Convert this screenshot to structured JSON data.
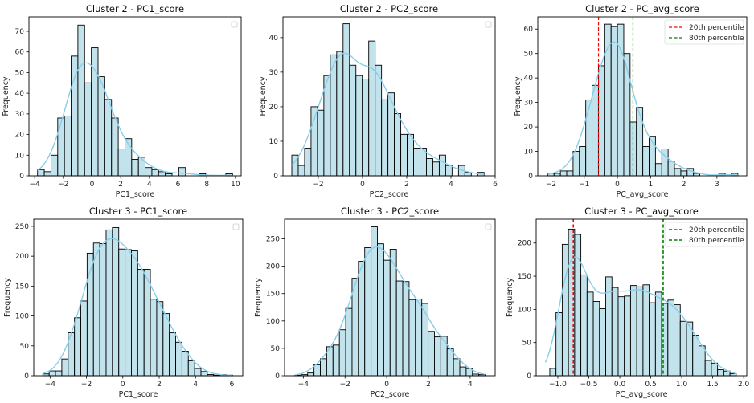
{
  "figure": {
    "bar_fill": "#add8e6",
    "bar_fill_opacity": 0.75,
    "bar_edge": "#000000",
    "kde_color": "#87ceeb",
    "p20_color": "#ff0000",
    "p80_color": "#008000"
  },
  "chart_data": [
    {
      "type": "bar",
      "subtype": "histogram",
      "title": "Cluster 2 - PC1_score",
      "xlabel": "PC1_score",
      "ylabel": "Frequency",
      "xlim": [
        -4.4,
        10.4
      ],
      "ylim": [
        0,
        77
      ],
      "xticks": [
        -4,
        -2,
        0,
        2,
        4,
        6,
        8,
        10
      ],
      "xtick_labels": [
        "−4",
        "−2",
        "0",
        "2",
        "4",
        "6",
        "8",
        "10"
      ],
      "yticks": [
        0,
        10,
        20,
        30,
        40,
        50,
        60,
        70
      ],
      "bin_start": -3.8,
      "bin_width": 0.469,
      "counts": [
        3,
        2,
        10,
        28,
        29,
        58,
        73,
        45,
        62,
        48,
        37,
        28,
        13,
        18,
        8,
        9,
        4,
        3,
        2,
        1,
        0,
        4,
        0,
        0,
        1,
        0,
        0,
        0,
        1
      ],
      "kde": true,
      "empty_legend": true,
      "legend": "top-right"
    },
    {
      "type": "bar",
      "subtype": "histogram",
      "title": "Cluster 2 - PC2_score",
      "xlabel": "PC2_score",
      "ylabel": "Frequency",
      "xlim": [
        -3.6,
        6.0
      ],
      "ylim": [
        0,
        46
      ],
      "xticks": [
        -2,
        0,
        2,
        4,
        6
      ],
      "xtick_labels": [
        "−2",
        "0",
        "2",
        "4",
        "6"
      ],
      "yticks": [
        0,
        10,
        20,
        30,
        40
      ],
      "bin_start": -3.2,
      "bin_width": 0.29,
      "counts": [
        6,
        3,
        8,
        20,
        19,
        29,
        35,
        36,
        44,
        32,
        29,
        28,
        39,
        32,
        22,
        24,
        18,
        12,
        12,
        8,
        8,
        5,
        4,
        6,
        3,
        0,
        3,
        1,
        0,
        1
      ],
      "kde": true,
      "empty_legend": true,
      "legend": "top-right"
    },
    {
      "type": "bar",
      "subtype": "histogram",
      "title": "Cluster 2 - PC_avg_score",
      "xlabel": "PC_avg_score",
      "ylabel": "Frequency",
      "xlim": [
        -2.4,
        3.9
      ],
      "ylim": [
        0,
        65
      ],
      "xticks": [
        -2,
        -1,
        0,
        1,
        2,
        3
      ],
      "xtick_labels": [
        "−2",
        "−1",
        "0",
        "1",
        "2",
        "3"
      ],
      "yticks": [
        0,
        10,
        20,
        30,
        40,
        50,
        60
      ],
      "bin_start": -2.1,
      "bin_width": 0.191,
      "counts": [
        1,
        1,
        2,
        2,
        10,
        12,
        31,
        37,
        45,
        62,
        61,
        62,
        50,
        22,
        28,
        12,
        16,
        5,
        11,
        6,
        3,
        2,
        3,
        1,
        0,
        0,
        0,
        1,
        0,
        1
      ],
      "kde": true,
      "percentile_lines": [
        {
          "label": "20th percentile",
          "value": -0.57,
          "color_key": "p20_color"
        },
        {
          "label": "80th percentile",
          "value": 0.47,
          "color_key": "p80_color"
        }
      ],
      "legend": "top-right"
    },
    {
      "type": "bar",
      "subtype": "histogram",
      "title": "Cluster 3 - PC1_score",
      "xlabel": "PC1_score",
      "ylabel": "Frequency",
      "xlim": [
        -4.9,
        6.6
      ],
      "ylim": [
        0,
        262
      ],
      "xticks": [
        -4,
        -2,
        0,
        2,
        4,
        6
      ],
      "xtick_labels": [
        "−4",
        "−2",
        "0",
        "2",
        "4",
        "6"
      ],
      "yticks": [
        0,
        50,
        100,
        150,
        200,
        250
      ],
      "bin_start": -4.4,
      "bin_width": 0.348,
      "counts": [
        3,
        8,
        8,
        28,
        72,
        97,
        125,
        205,
        222,
        221,
        244,
        248,
        212,
        211,
        209,
        178,
        178,
        128,
        124,
        104,
        72,
        56,
        41,
        25,
        12,
        7,
        2,
        1,
        2,
        1
      ],
      "kde": true,
      "empty_legend": true,
      "legend": "top-right"
    },
    {
      "type": "bar",
      "subtype": "histogram",
      "title": "Cluster 3 - PC2_score",
      "xlabel": "PC2_score",
      "ylabel": "Frequency",
      "xlim": [
        -4.9,
        5.2
      ],
      "ylim": [
        0,
        286
      ],
      "xticks": [
        -4,
        -2,
        0,
        2,
        4
      ],
      "xtick_labels": [
        "−4",
        "−2",
        "0",
        "2",
        "4"
      ],
      "yticks": [
        0,
        50,
        100,
        150,
        200,
        250
      ],
      "bin_start": -4.4,
      "bin_width": 0.304,
      "counts": [
        1,
        2,
        5,
        20,
        31,
        53,
        56,
        84,
        123,
        178,
        209,
        234,
        272,
        241,
        211,
        231,
        173,
        172,
        139,
        140,
        132,
        81,
        71,
        72,
        49,
        31,
        16,
        13,
        3,
        2
      ],
      "kde": true,
      "empty_legend": true,
      "legend": "top-right"
    },
    {
      "type": "bar",
      "subtype": "histogram",
      "title": "Cluster 3 - PC_avg_score",
      "xlabel": "PC_avg_score",
      "ylabel": "Frequency",
      "xlim": [
        -1.35,
        2.05
      ],
      "ylim": [
        0,
        236
      ],
      "xticks": [
        -1.0,
        -0.5,
        0.0,
        0.5,
        1.0,
        1.5,
        2.0
      ],
      "xtick_labels": [
        "−1.0",
        "−0.5",
        "0.0",
        "0.5",
        "1.0",
        "1.5",
        "2.0"
      ],
      "yticks": [
        0,
        50,
        100,
        150,
        200
      ],
      "bin_start": -1.13,
      "bin_width": 0.1003,
      "counts": [
        11,
        95,
        198,
        221,
        213,
        152,
        126,
        112,
        101,
        149,
        133,
        119,
        120,
        136,
        134,
        137,
        110,
        126,
        109,
        114,
        107,
        82,
        81,
        61,
        45,
        23,
        19,
        9,
        7,
        3
      ],
      "kde": true,
      "kde_start": -1.2,
      "percentile_lines": [
        {
          "label": "20th percentile",
          "value": -0.75,
          "color_key": "p20_color"
        },
        {
          "label": "80th percentile",
          "value": 0.7,
          "color_key": "p80_color"
        }
      ],
      "legend": "top-right"
    }
  ]
}
